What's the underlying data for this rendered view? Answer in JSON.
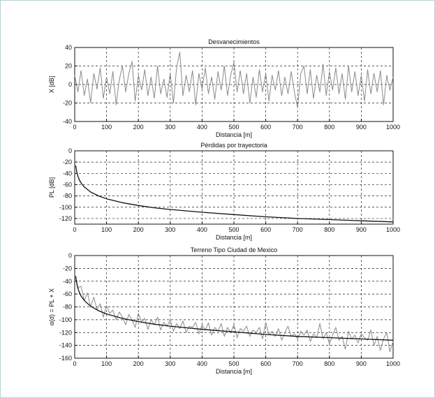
{
  "colors": {
    "frame_border": "#a9dadd",
    "noise_series": "#8a8a8a",
    "curve_series": "#111111",
    "grid": "#222222"
  },
  "chart_data": [
    {
      "type": "line",
      "title": "Desvanecimientos",
      "xlabel": "Distancia [m]",
      "ylabel": "X [dB]",
      "xlim": [
        0,
        1000
      ],
      "ylim": [
        -40,
        40
      ],
      "xticks": [
        0,
        100,
        200,
        300,
        400,
        500,
        600,
        700,
        800,
        900,
        1000
      ],
      "yticks": [
        -40,
        -20,
        0,
        20,
        40
      ],
      "grid": true,
      "series": [
        {
          "style": "noise",
          "color": "#8a8a8a",
          "x": [
            0,
            10,
            20,
            30,
            40,
            50,
            60,
            70,
            80,
            90,
            100,
            110,
            120,
            130,
            140,
            150,
            160,
            170,
            180,
            190,
            200,
            210,
            220,
            230,
            240,
            250,
            260,
            270,
            280,
            290,
            300,
            310,
            320,
            330,
            340,
            350,
            360,
            370,
            380,
            390,
            400,
            410,
            420,
            430,
            440,
            450,
            460,
            470,
            480,
            490,
            500,
            510,
            520,
            530,
            540,
            550,
            560,
            570,
            580,
            590,
            600,
            610,
            620,
            630,
            640,
            650,
            660,
            670,
            680,
            690,
            700,
            710,
            720,
            730,
            740,
            750,
            760,
            770,
            780,
            790,
            800,
            810,
            820,
            830,
            840,
            850,
            860,
            870,
            880,
            890,
            900,
            910,
            920,
            930,
            940,
            950,
            960,
            970,
            980,
            990,
            1000
          ],
          "y": [
            10,
            -8,
            15,
            -12,
            6,
            -20,
            12,
            -5,
            18,
            -15,
            8,
            -10,
            14,
            -22,
            5,
            20,
            -8,
            12,
            25,
            -18,
            10,
            -6,
            16,
            -12,
            8,
            -15,
            20,
            -10,
            6,
            -14,
            12,
            -20,
            18,
            35,
            -12,
            10,
            -8,
            15,
            -22,
            12,
            -5,
            18,
            -10,
            8,
            -16,
            14,
            -6,
            20,
            -12,
            10,
            24,
            -8,
            15,
            -10,
            12,
            -20,
            8,
            -14,
            16,
            -8,
            12,
            -18,
            10,
            -6,
            15,
            -12,
            8,
            -10,
            14,
            -8,
            -25,
            12,
            20,
            -10,
            16,
            -15,
            10,
            -8,
            22,
            -12,
            14,
            -6,
            18,
            -10,
            12,
            -16,
            20,
            -8,
            14,
            -12,
            10,
            -18,
            16,
            -10,
            12,
            -8,
            15,
            -22,
            10,
            -6,
            8
          ]
        }
      ]
    },
    {
      "type": "line",
      "title": "Pérdidas por trayectoria",
      "xlabel": "Distancia [m]",
      "ylabel": "PL [dB]",
      "xlim": [
        0,
        1000
      ],
      "ylim": [
        -130,
        0
      ],
      "xticks": [
        0,
        100,
        200,
        300,
        400,
        500,
        600,
        700,
        800,
        900,
        1000
      ],
      "yticks": [
        0,
        -20,
        -40,
        -60,
        -80,
        -100,
        -120
      ],
      "grid": true,
      "series": [
        {
          "style": "curve",
          "color": "#111111",
          "x": [
            3,
            5,
            8,
            10,
            15,
            20,
            30,
            50,
            75,
            100,
            150,
            200,
            250,
            300,
            400,
            500,
            600,
            700,
            800,
            900,
            1000
          ],
          "y": [
            -26,
            -33,
            -41,
            -45,
            -52,
            -57,
            -64,
            -73,
            -80,
            -85,
            -92,
            -97,
            -101,
            -104,
            -109,
            -113,
            -117,
            -120,
            -122,
            -124,
            -126
          ]
        }
      ]
    },
    {
      "type": "line",
      "title": "Terreno Tipo Ciudad de Mexico",
      "xlabel": "Distancia [m]",
      "ylabel": "α(d) = PL + X",
      "xlim": [
        0,
        1000
      ],
      "ylim": [
        -160,
        0
      ],
      "xticks": [
        0,
        100,
        200,
        300,
        400,
        500,
        600,
        700,
        800,
        900,
        1000
      ],
      "yticks": [
        0,
        -20,
        -40,
        -60,
        -80,
        -100,
        -120,
        -140,
        -160
      ],
      "grid": true,
      "series": [
        {
          "style": "noise",
          "color": "#8a8a8a",
          "x": [
            3,
            10,
            20,
            30,
            40,
            50,
            60,
            70,
            80,
            90,
            100,
            110,
            120,
            130,
            140,
            150,
            160,
            170,
            180,
            190,
            200,
            210,
            220,
            230,
            240,
            250,
            260,
            270,
            280,
            290,
            300,
            310,
            320,
            330,
            340,
            350,
            360,
            370,
            380,
            390,
            400,
            410,
            420,
            430,
            440,
            450,
            460,
            470,
            480,
            490,
            500,
            510,
            520,
            530,
            540,
            550,
            560,
            570,
            580,
            590,
            600,
            610,
            620,
            630,
            640,
            650,
            660,
            670,
            680,
            690,
            700,
            710,
            720,
            730,
            740,
            750,
            760,
            770,
            780,
            790,
            800,
            810,
            820,
            830,
            840,
            850,
            860,
            870,
            880,
            890,
            900,
            910,
            920,
            930,
            940,
            950,
            960,
            970,
            980,
            990,
            1000
          ],
          "y": [
            -35,
            -50,
            -48,
            -70,
            -58,
            -80,
            -65,
            -84,
            -75,
            -96,
            -78,
            -90,
            -85,
            -100,
            -88,
            -96,
            -108,
            -92,
            -100,
            -112,
            -90,
            -104,
            -98,
            -115,
            -100,
            -108,
            -96,
            -116,
            -104,
            -110,
            -100,
            -118,
            -106,
            -114,
            -102,
            -120,
            -110,
            -112,
            -104,
            -122,
            -108,
            -116,
            -105,
            -124,
            -112,
            -118,
            -106,
            -126,
            -112,
            -120,
            -108,
            -128,
            -114,
            -118,
            -110,
            -126,
            -116,
            -120,
            -112,
            -130,
            -104,
            -124,
            -118,
            -126,
            -114,
            -132,
            -120,
            -110,
            -126,
            -122,
            -130,
            -118,
            -124,
            -116,
            -134,
            -122,
            -128,
            -106,
            -130,
            -120,
            -138,
            -124,
            -112,
            -132,
            -126,
            -146,
            -118,
            -130,
            -124,
            -136,
            -122,
            -128,
            -132,
            -116,
            -140,
            -126,
            -148,
            -130,
            -120,
            -150,
            -134
          ]
        },
        {
          "style": "curve",
          "color": "#111111",
          "x": [
            3,
            5,
            8,
            10,
            15,
            20,
            30,
            50,
            75,
            100,
            150,
            200,
            250,
            300,
            400,
            500,
            600,
            700,
            800,
            900,
            1000
          ],
          "y": [
            -32,
            -39,
            -47,
            -51,
            -58,
            -63,
            -70,
            -79,
            -86,
            -91,
            -98,
            -103,
            -107,
            -110,
            -115,
            -119,
            -123,
            -126,
            -128,
            -130,
            -132
          ]
        }
      ]
    }
  ]
}
